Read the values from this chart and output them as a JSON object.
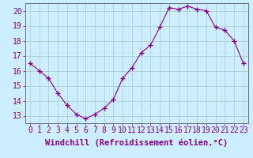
{
  "x": [
    0,
    1,
    2,
    3,
    4,
    5,
    6,
    7,
    8,
    9,
    10,
    11,
    12,
    13,
    14,
    15,
    16,
    17,
    18,
    19,
    20,
    21,
    22,
    23
  ],
  "y": [
    16.5,
    16.0,
    15.5,
    14.5,
    13.7,
    13.1,
    12.8,
    13.1,
    13.5,
    14.1,
    15.5,
    16.2,
    17.2,
    17.7,
    18.9,
    20.2,
    20.1,
    20.3,
    20.1,
    20.0,
    18.9,
    18.7,
    18.0,
    16.5
  ],
  "line_color": "#880088",
  "marker": "+",
  "marker_size": 5,
  "background_color": "#cceeff",
  "grid_color": "#aacccc",
  "xlabel": "Windchill (Refroidissement éolien,°C)",
  "xlabel_fontsize": 7.5,
  "tick_fontsize": 7,
  "ylim": [
    12.5,
    20.5
  ],
  "yticks": [
    13,
    14,
    15,
    16,
    17,
    18,
    19,
    20
  ],
  "xticks": [
    0,
    1,
    2,
    3,
    4,
    5,
    6,
    7,
    8,
    9,
    10,
    11,
    12,
    13,
    14,
    15,
    16,
    17,
    18,
    19,
    20,
    21,
    22,
    23
  ],
  "xtick_labels": [
    "0",
    "1",
    "2",
    "3",
    "4",
    "5",
    "6",
    "7",
    "8",
    "9",
    "10",
    "11",
    "12",
    "13",
    "14",
    "15",
    "16",
    "17",
    "18",
    "19",
    "20",
    "21",
    "22",
    "23"
  ]
}
